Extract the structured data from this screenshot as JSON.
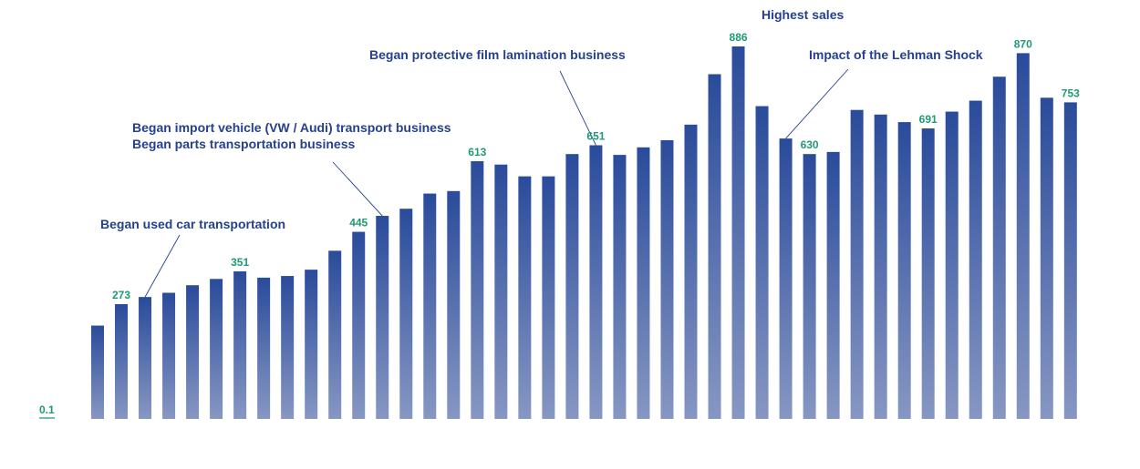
{
  "chart_data": {
    "type": "bar",
    "colors": {
      "bar_top": "#2a4b9b",
      "bar_bottom": "#8797c2",
      "annotation": "#25418c",
      "value_label": "#1e9a74",
      "leader_line": "#25418c"
    },
    "baseline_label": "0.1",
    "values": [
      222,
      273,
      290,
      300,
      318,
      333,
      351,
      336,
      340,
      355,
      400,
      445,
      483,
      500,
      536,
      542,
      613,
      605,
      577,
      577,
      630,
      651,
      628,
      646,
      663,
      700,
      820,
      886,
      744,
      667,
      630,
      635,
      735,
      724,
      706,
      691,
      731,
      757,
      814,
      870,
      764,
      753
    ],
    "value_labels": [
      {
        "index": 1,
        "text": "273"
      },
      {
        "index": 6,
        "text": "351"
      },
      {
        "index": 11,
        "text": "445"
      },
      {
        "index": 16,
        "text": "613"
      },
      {
        "index": 21,
        "text": "651"
      },
      {
        "index": 27,
        "text": "886"
      },
      {
        "index": 30,
        "text": "630"
      },
      {
        "index": 35,
        "text": "691"
      },
      {
        "index": 39,
        "text": "870"
      },
      {
        "index": 41,
        "text": "753"
      }
    ],
    "annotations": [
      {
        "bar_index": 2,
        "lines": [
          "Began used car transportation"
        ]
      },
      {
        "bar_index": 12,
        "lines": [
          "Began import vehicle (VW / Audi) transport business",
          "Began parts transportation business"
        ]
      },
      {
        "bar_index": 21,
        "lines": [
          "Began protective film lamination business"
        ]
      },
      {
        "bar_index": 27,
        "lines": [
          "Highest sales"
        ]
      },
      {
        "bar_index": 29,
        "lines": [
          "Impact of the Lehman Shock"
        ]
      }
    ]
  }
}
